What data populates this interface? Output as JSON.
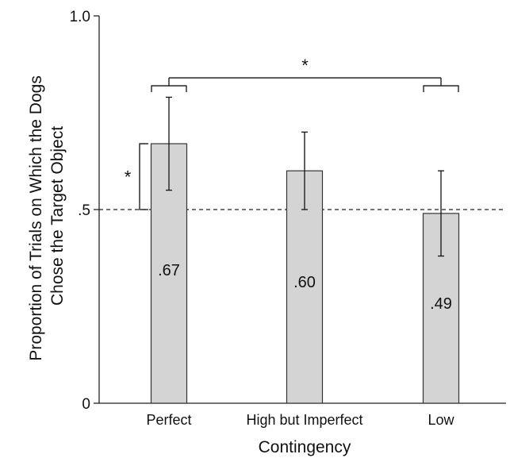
{
  "chart_data": {
    "type": "bar",
    "xlabel": "Contingency",
    "ylabel_lines": [
      "Proportion of Trials on Which the Dogs",
      "Chose the Target Object"
    ],
    "ylim": [
      0,
      1
    ],
    "yticks": [
      {
        "value": 0,
        "label": "0"
      },
      {
        "value": 0.5,
        "label": ".5"
      },
      {
        "value": 1,
        "label": "1.0"
      }
    ],
    "categories": [
      "Perfect",
      "High but Imperfect",
      "Low"
    ],
    "values": [
      0.67,
      0.6,
      0.49
    ],
    "value_labels": [
      ".67",
      ".60",
      ".49"
    ],
    "error_bars": [
      {
        "low": 0.55,
        "high": 0.79
      },
      {
        "low": 0.5,
        "high": 0.7
      },
      {
        "low": 0.38,
        "high": 0.6
      }
    ],
    "reference_line": {
      "value": 0.5,
      "style": "dashed"
    },
    "bar_color": "#d4d4d4",
    "bar_edge_color": "#333333",
    "annotations": [
      {
        "type": "chance-bracket",
        "category_index": 0,
        "from": 0.5,
        "to": 0.67,
        "label": "*"
      },
      {
        "type": "comparison-bracket",
        "between": [
          0,
          2
        ],
        "level": 0.84,
        "label": "*"
      }
    ],
    "grid": false,
    "legend": "none"
  }
}
